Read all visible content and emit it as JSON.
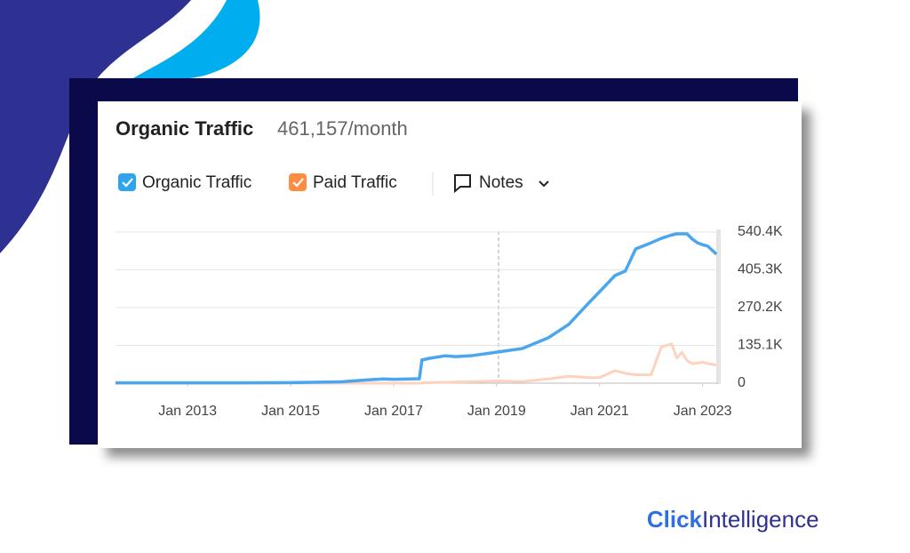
{
  "header": {
    "title": "Organic Traffic",
    "value": "461,157/month"
  },
  "controls": {
    "notes": "Notes"
  },
  "brand": {
    "bold": "Click",
    "rest": "Intelligence"
  },
  "chart_data": {
    "type": "line",
    "x": [
      2011.6,
      2014.0,
      2015.0,
      2016.0,
      2016.5,
      2016.8,
      2017.0,
      2017.5,
      2017.55,
      2017.7,
      2018.0,
      2018.2,
      2018.5,
      2019.0,
      2019.5,
      2020.0,
      2020.4,
      2020.8,
      2021.0,
      2021.3,
      2021.5,
      2021.7,
      2022.0,
      2022.2,
      2022.4,
      2022.5,
      2022.6,
      2022.7,
      2022.8,
      2022.9,
      2023.0,
      2023.1,
      2023.27
    ],
    "series": [
      {
        "name": "Organic Traffic",
        "color": "#4aa6ee",
        "values": [
          1000,
          1000,
          2000,
          5000,
          12000,
          15000,
          14000,
          16000,
          83000,
          89000,
          98000,
          95000,
          98000,
          111000,
          124000,
          162000,
          210000,
          289000,
          327000,
          385000,
          401000,
          480000,
          502000,
          518000,
          530000,
          534000,
          534000,
          534000,
          515000,
          502000,
          495000,
          490000,
          461157
        ]
      },
      {
        "name": "Paid Traffic",
        "color": "#fcd3bd",
        "values": [
          0,
          0,
          0,
          0,
          0,
          0,
          0,
          0,
          1000,
          2000,
          3000,
          4000,
          5000,
          8000,
          6000,
          15000,
          25000,
          20000,
          20000,
          45000,
          35000,
          30000,
          30000,
          130000,
          140000,
          90000,
          110000,
          80000,
          70000,
          72000,
          75000,
          70000,
          65000
        ]
      }
    ],
    "xlim": [
      2011.6,
      2023.3
    ],
    "xticks": [
      {
        "value": 2013,
        "label": "Jan 2013"
      },
      {
        "value": 2015,
        "label": "Jan 2015"
      },
      {
        "value": 2017,
        "label": "Jan 2017"
      },
      {
        "value": 2019,
        "label": "Jan 2019"
      },
      {
        "value": 2021,
        "label": "Jan 2021"
      },
      {
        "value": 2023,
        "label": "Jan 2023"
      }
    ],
    "ylim": [
      0,
      540400
    ],
    "yticks": [
      0,
      {
        "value": 135100,
        "label": "135.1K"
      },
      {
        "value": 270200,
        "label": "270.2K"
      },
      {
        "value": 405300,
        "label": "405.3K"
      },
      {
        "value": 540400,
        "label": "540.4K"
      }
    ],
    "grid": true
  }
}
